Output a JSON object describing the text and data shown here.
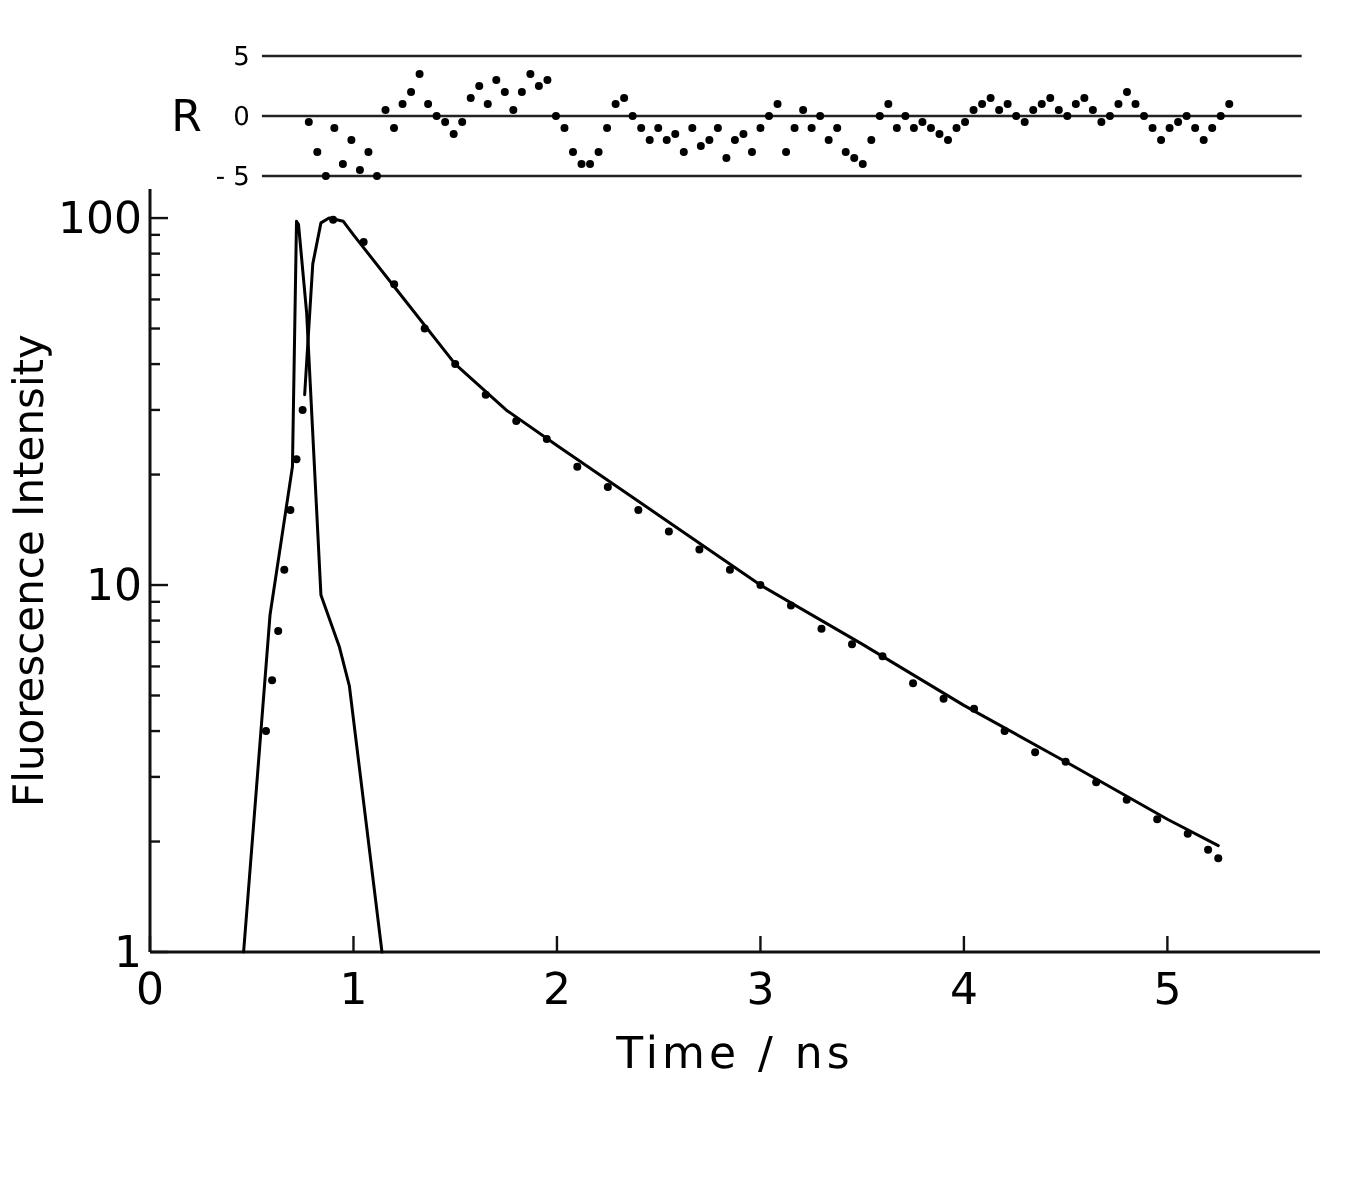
{
  "chart_data": [
    {
      "type": "scatter",
      "ylabel": "R",
      "categories": [
        null,
        null,
        null,
        null,
        null,
        null,
        null,
        null,
        null,
        null,
        null,
        null,
        null,
        null,
        null,
        null,
        null,
        null,
        null,
        null,
        null,
        null,
        null,
        null,
        null,
        null,
        null,
        null,
        null,
        null,
        null,
        null,
        null,
        null,
        null,
        null,
        null,
        null,
        null,
        null,
        null,
        null,
        null,
        null,
        null,
        null,
        null,
        null,
        null,
        null,
        null,
        null,
        null,
        null,
        null,
        null,
        null,
        null,
        null,
        null,
        null,
        null,
        null,
        null,
        null,
        null,
        null,
        null,
        null,
        null,
        null,
        null,
        null,
        null,
        null,
        null,
        null,
        null,
        null,
        null,
        null,
        null,
        null,
        null,
        null,
        null,
        null,
        null,
        null,
        null,
        null,
        null,
        null,
        null,
        null,
        null,
        null,
        null,
        null,
        null,
        null,
        null,
        null,
        null,
        null,
        null,
        null,
        null,
        null,
        null,
        null,
        null,
        null,
        null,
        null,
        null,
        null,
        null,
        null,
        null,
        null,
        null
      ],
      "ylim": [
        -5,
        5
      ],
      "yticks": [
        5,
        0,
        {
          "value": -5,
          "label": "- 5"
        }
      ],
      "grid": "y",
      "tick_labels": "y",
      "series": [
        {
          "color": "#000000",
          "marker": "circle",
          "values": [
            null,
            null,
            null,
            null,
            null,
            -0.5,
            -3,
            -5,
            -1,
            -4,
            -2,
            -4.5,
            -3,
            -5,
            0.5,
            -1,
            1,
            2,
            3.5,
            1,
            0,
            -0.5,
            -1.5,
            -0.5,
            1.5,
            2.5,
            1,
            3,
            2,
            0.5,
            2,
            3.5,
            2.5,
            3,
            0,
            -1,
            -3,
            -4,
            -4,
            -3,
            -1,
            1,
            1.5,
            0,
            -1,
            -2,
            -1,
            -2,
            -1.5,
            -3,
            -1,
            -2.5,
            -2,
            -1,
            -3.5,
            -2,
            -1.5,
            -3,
            -1,
            0,
            1,
            -3,
            -1,
            0.5,
            -1,
            0,
            -2,
            -1,
            -3,
            -3.5,
            -4,
            -2,
            0,
            1,
            -1,
            0,
            -1,
            -0.5,
            -1,
            -1.5,
            -2,
            -1,
            -0.5,
            0.5,
            1,
            1.5,
            0.5,
            1,
            0,
            -0.5,
            0.5,
            1,
            1.5,
            0.5,
            0,
            1,
            1.5,
            0.5,
            -0.5,
            0,
            1,
            2,
            1,
            0,
            -1,
            -2,
            -1,
            -0.5,
            0,
            -1,
            -2,
            -1,
            0,
            1,
            null,
            null,
            null,
            null,
            null,
            null,
            null,
            null
          ]
        }
      ]
    },
    {
      "type": "line",
      "xlabel": "Time / ns",
      "ylabel": "Fluorescence Intensity",
      "log": "y",
      "xlim": [
        0,
        5.75
      ],
      "ylim": [
        1,
        120
      ],
      "xticks": [
        0,
        1,
        2,
        3,
        4,
        5
      ],
      "yticks": [
        1,
        {
          "value": 2,
          "label": null
        },
        {
          "value": 3,
          "label": null
        },
        {
          "value": 4,
          "label": null
        },
        {
          "value": 5,
          "label": null
        },
        {
          "value": 6,
          "label": null
        },
        {
          "value": 7,
          "label": null
        },
        {
          "value": 8,
          "label": null
        },
        {
          "value": 9,
          "label": null
        },
        10,
        {
          "value": 20,
          "label": null
        },
        {
          "value": 30,
          "label": null
        },
        {
          "value": 40,
          "label": null
        },
        {
          "value": 50,
          "label": null
        },
        {
          "value": 60,
          "label": null
        },
        {
          "value": 70,
          "label": null
        },
        {
          "value": 80,
          "label": null
        },
        {
          "value": 90,
          "label": null
        },
        100
      ],
      "series": [
        {
          "type": "scatter",
          "color": "#000000",
          "marker": "circle",
          "x": [
            0.57,
            0.6,
            0.63,
            0.66,
            0.69,
            0.72,
            0.75,
            0.9,
            1.05,
            1.2,
            1.35,
            1.5,
            1.65,
            1.8,
            1.95,
            2.1,
            2.25,
            2.4,
            2.55,
            2.7,
            2.85,
            3.0,
            3.15,
            3.3,
            3.45,
            3.6,
            3.75,
            3.9,
            4.05,
            4.2,
            4.35,
            4.5,
            4.65,
            4.8,
            4.95,
            5.1,
            5.2,
            5.25
          ],
          "values": [
            4,
            5.5,
            7.5,
            11,
            16,
            22,
            30,
            99,
            86,
            66,
            50,
            40,
            33,
            28,
            25,
            21,
            18.5,
            16,
            14,
            12.5,
            11,
            10,
            8.8,
            7.6,
            6.9,
            6.4,
            5.4,
            4.9,
            4.6,
            4,
            3.5,
            3.3,
            2.9,
            2.6,
            2.3,
            2.1,
            1.9,
            1.8
          ]
        },
        {
          "color": "#000000",
          "marker": "none",
          "x": [
            0.76,
            0.8,
            0.84,
            0.88,
            0.95,
            1.0,
            1.25,
            1.5,
            1.75,
            2.0,
            2.5,
            3.0,
            3.5,
            4.0,
            4.5,
            5.0,
            5.25
          ],
          "values": [
            33,
            75,
            97,
            100,
            98,
            90,
            60,
            40,
            30,
            24,
            15.5,
            10,
            6.9,
            4.7,
            3.3,
            2.3,
            1.95
          ]
        },
        {
          "color": "#000000",
          "marker": "none",
          "x": [
            0.46,
            0.59,
            0.7,
            0.72,
            0.73,
            0.77,
            0.84,
            0.93,
            0.98,
            1.14
          ],
          "values": [
            1,
            8.3,
            21,
            98,
            96,
            55,
            9.4,
            6.8,
            5.3,
            1
          ]
        }
      ]
    }
  ]
}
